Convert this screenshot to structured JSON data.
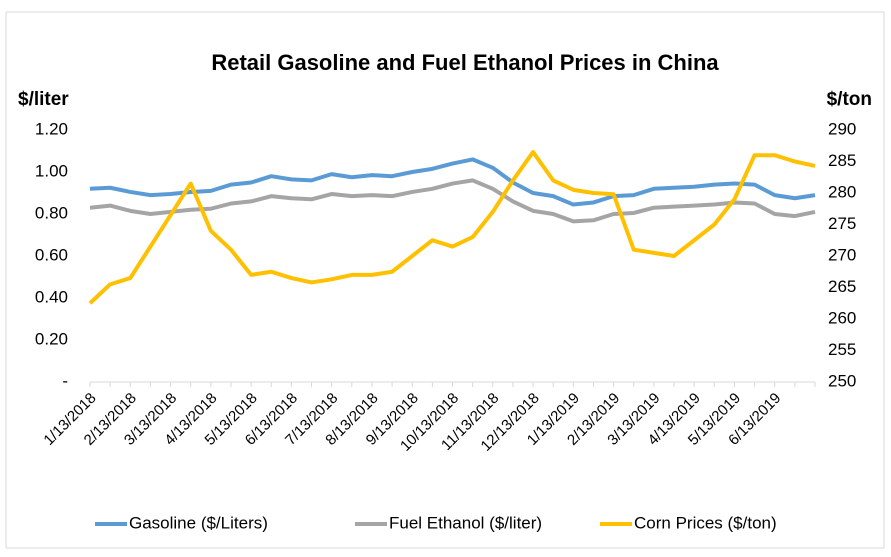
{
  "chart_data": {
    "type": "line",
    "title": "Retail Gasoline and Fuel Ethanol Prices in China",
    "y_label": "$/liter",
    "y2_label": "$/ton",
    "categories": [
      "1/13/2018",
      null,
      "2/13/2018",
      null,
      "3/13/2018",
      null,
      "4/13/2018",
      null,
      "5/13/2018",
      null,
      "6/13/2018",
      null,
      "7/13/2018",
      null,
      "8/13/2018",
      null,
      "9/13/2018",
      null,
      "10/13/2018",
      null,
      "11/13/2018",
      null,
      "12/13/2018",
      null,
      "1/13/2019",
      null,
      "2/13/2019",
      null,
      "3/13/2019",
      null,
      "4/13/2019",
      null,
      "5/13/2019",
      null,
      "6/13/2019",
      null,
      null
    ],
    "series": [
      {
        "name": "Gasoline ($/Liters)",
        "color": "#5b9bd5",
        "values": [
          0.92,
          0.925,
          0.905,
          0.89,
          0.895,
          0.905,
          0.91,
          0.94,
          0.95,
          0.98,
          0.965,
          0.96,
          0.99,
          0.975,
          0.985,
          0.98,
          1.0,
          1.015,
          1.04,
          1.06,
          1.02,
          0.95,
          0.9,
          0.885,
          0.845,
          0.855,
          0.885,
          0.89,
          0.92,
          0.925,
          0.93,
          0.94,
          0.945,
          0.94,
          0.89,
          0.875,
          0.89
        ]
      },
      {
        "name": "Fuel Ethanol ($/liter)",
        "color": "#a5a5a5",
        "values": [
          0.83,
          0.84,
          0.815,
          0.8,
          0.81,
          0.82,
          0.825,
          0.85,
          0.86,
          0.885,
          0.875,
          0.87,
          0.895,
          0.885,
          0.89,
          0.885,
          0.905,
          0.92,
          0.945,
          0.96,
          0.92,
          0.86,
          0.815,
          0.8,
          0.765,
          0.77,
          0.8,
          0.805,
          0.83,
          0.835,
          0.84,
          0.845,
          0.855,
          0.85,
          0.8,
          0.79,
          0.81
        ]
      },
      {
        "name": "Corn Prices ($/ton)",
        "color": "#ffc000",
        "axis": "y2",
        "values": [
          262.5,
          265.5,
          266.5,
          271.5,
          276.5,
          281.5,
          274,
          271,
          267,
          267.5,
          266.5,
          265.8,
          266.3,
          267,
          267,
          267.5,
          270,
          272.5,
          271.5,
          273,
          277,
          282,
          286.5,
          282,
          280.5,
          280,
          279.8,
          271,
          270.5,
          270,
          272.5,
          275,
          279,
          286,
          286,
          285,
          284.3
        ]
      }
    ],
    "ylim": [
      0,
      1.2
    ],
    "yticks": [
      {
        "value": 0,
        "label": "-"
      },
      {
        "value": 0.2,
        "label": "0.20"
      },
      {
        "value": 0.4,
        "label": "0.40"
      },
      {
        "value": 0.6,
        "label": "0.60"
      },
      {
        "value": 0.8,
        "label": "0.80"
      },
      {
        "value": 1.0,
        "label": "1.00"
      },
      {
        "value": 1.2,
        "label": "1.20"
      }
    ],
    "y2lim": [
      250,
      290
    ],
    "y2ticks": [
      250,
      255,
      260,
      265,
      270,
      275,
      280,
      285,
      290
    ],
    "grid": false,
    "legend": "bottom"
  }
}
